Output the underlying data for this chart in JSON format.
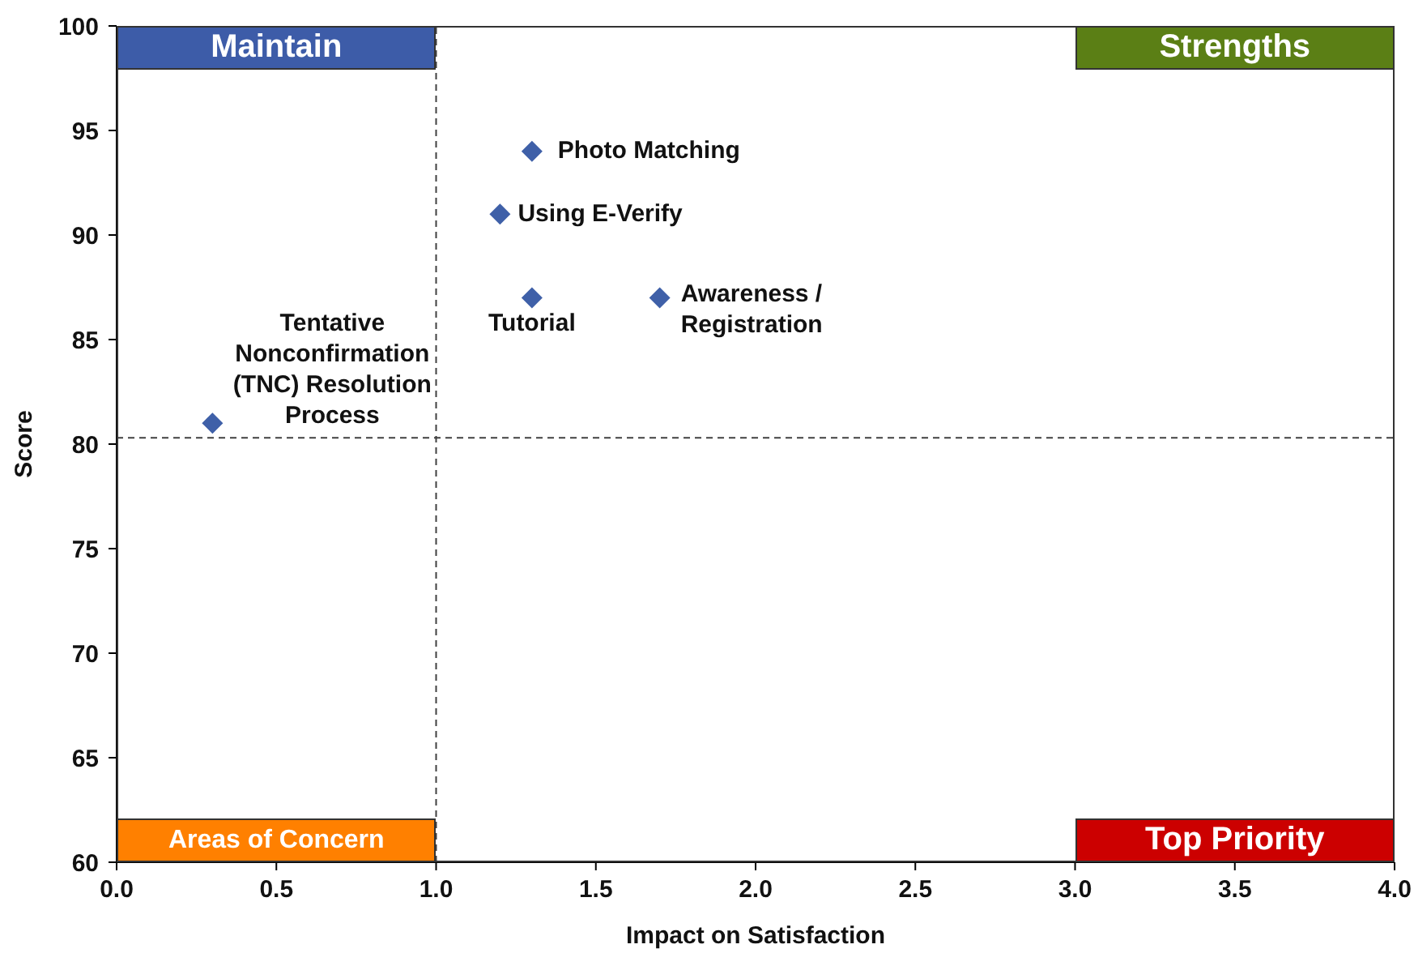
{
  "chart_data": {
    "type": "scatter",
    "xlabel": "Impact on Satisfaction",
    "ylabel": "Score",
    "x": [
      1.3,
      1.2,
      1.3,
      1.7,
      0.3
    ],
    "values": [
      94,
      91,
      87,
      87,
      81
    ],
    "color": "#3f60a8",
    "marker": "diamond",
    "xlim": [
      0,
      4
    ],
    "ylim": [
      60,
      100
    ],
    "xticks": [
      {
        "value": 0,
        "label": "0.0"
      },
      0.5,
      {
        "value": 1,
        "label": "1.0"
      },
      1.5,
      {
        "value": 2,
        "label": "2.0"
      },
      2.5,
      {
        "value": 3,
        "label": "3.0"
      },
      3.5,
      {
        "value": 4,
        "label": "4.0"
      }
    ],
    "yticks": [
      60,
      65,
      70,
      75,
      80,
      85,
      90,
      95,
      100
    ],
    "ref_lines": [
      {
        "axis": "x",
        "value": 1,
        "color": "#404040",
        "line_style": "dashed"
      },
      {
        "axis": "y",
        "value": 80.3,
        "color": "#404040",
        "line_style": "dashed"
      }
    ],
    "annotations": [
      {
        "text": "Photo Matching",
        "x": 1.3,
        "y": 94
      },
      {
        "text": "Using E-Verify",
        "x": 1.2,
        "y": 91
      },
      {
        "text": "Tutorial",
        "x": 1.3,
        "y": 87
      },
      {
        "text": "Awareness / Registration",
        "x": 1.7,
        "y": 87
      },
      {
        "text": "Tentative Nonconfirmation (TNC) Resolution Process",
        "x": 0.3,
        "y": 81
      },
      "Maintain",
      "Strengths",
      "Areas of Concern",
      "Top Priority"
    ]
  }
}
